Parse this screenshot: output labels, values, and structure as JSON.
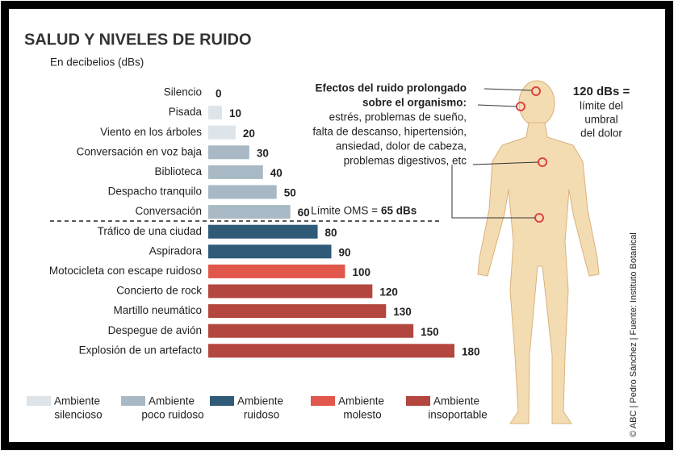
{
  "chart_data": {
    "type": "bar",
    "orientation": "horizontal",
    "title": "SALUD Y NIVELES DE RUIDO",
    "subtitle": "En decibelios (dBs)",
    "categories": [
      "Silencio",
      "Pisada",
      "Viento en los árboles",
      "Conversación en voz baja",
      "Biblioteca",
      "Despacho tranquilo",
      "Conversación",
      "Tráfico de una ciudad",
      "Aspiradora",
      "Motocicleta con escape ruidoso",
      "Concierto de rock",
      "Martillo neumático",
      "Despegue de avión",
      "Explosión de un artefacto"
    ],
    "values": [
      0,
      10,
      20,
      30,
      40,
      50,
      60,
      80,
      90,
      100,
      120,
      130,
      150,
      180
    ],
    "colors": [
      "#dde4ea",
      "#dde4ea",
      "#dde4ea",
      "#a8b9c5",
      "#a8b9c5",
      "#a8b9c5",
      "#a8b9c5",
      "#2f5a78",
      "#2f5a78",
      "#e2574c",
      "#b3463e",
      "#b3463e",
      "#b3463e",
      "#b3463e"
    ],
    "xlim": [
      0,
      180
    ],
    "legend": [
      {
        "name": [
          "Ambiente",
          "silencioso"
        ],
        "color": "#dde4ea"
      },
      {
        "name": [
          "Ambiente",
          "poco ruidoso"
        ],
        "color": "#a8b9c5"
      },
      {
        "name": [
          "Ambiente",
          "ruidoso"
        ],
        "color": "#2f5a78"
      },
      {
        "name": [
          "Ambiente",
          "molesto"
        ],
        "color": "#e2574c"
      },
      {
        "name": [
          "Ambiente",
          "insoportable"
        ],
        "color": "#b3463e"
      }
    ],
    "who_limit": {
      "label": "Límite OMS =",
      "value_label": "65 dBs"
    },
    "effects": {
      "heading": [
        "Efectos del ruido prolongado",
        "sobre el organismo:"
      ],
      "lines": [
        "estrés, problemas de sueño,",
        "falta de descanso, hipertensión,",
        "ansiedad, dolor de cabeza,",
        "problemas digestivos, etc"
      ]
    },
    "pain": {
      "heading": "120 dBs =",
      "lines": [
        "límite del",
        "umbral",
        "del dolor"
      ]
    },
    "credit": "© ABC | Pedro Sánchez | Fuente: Instituto Botanical"
  }
}
